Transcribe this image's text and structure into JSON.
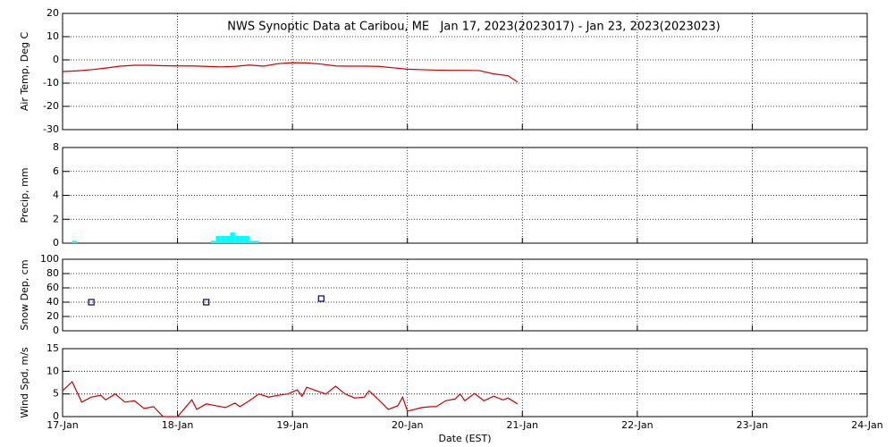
{
  "chart_data": [
    {
      "type": "line",
      "title": "NWS Synoptic Data at Caribou, ME   Jan 17, 2023(2023017) - Jan 23, 2023(2023023)",
      "ylabel": "Air Temp, Deg C",
      "color": "#cc0000",
      "x": [
        0,
        3,
        6,
        9,
        12,
        15,
        18,
        21,
        24,
        27,
        30,
        33,
        36,
        39,
        42,
        45,
        48,
        51,
        54,
        57,
        60,
        63,
        66,
        69,
        72,
        75,
        78,
        81,
        84,
        87,
        90,
        93,
        95
      ],
      "values": [
        -5,
        -4.7,
        -4.2,
        -3.5,
        -2.7,
        -2.3,
        -2.3,
        -2.5,
        -2.6,
        -2.6,
        -2.8,
        -3,
        -2.8,
        -2.2,
        -2.7,
        -1.6,
        -1.2,
        -1.3,
        -1.8,
        -2.6,
        -2.7,
        -2.7,
        -2.8,
        -3.4,
        -4,
        -4.2,
        -4.4,
        -4.5,
        -4.5,
        -4.6,
        -6,
        -6.8,
        -9.5
      ],
      "xlim": [
        0,
        168
      ],
      "xticks": [
        0,
        24,
        48,
        72,
        96,
        120,
        144,
        168
      ],
      "ylim": [
        -30,
        20
      ],
      "yticks": [
        -30,
        -20,
        -10,
        0,
        10,
        20
      ],
      "grid": true
    },
    {
      "type": "bar",
      "ylabel": "Precip, mm",
      "color": "#00ffff",
      "x": [
        2,
        31,
        32,
        33,
        34,
        35,
        36,
        37,
        38,
        39,
        40
      ],
      "values": [
        0.2,
        0.2,
        0.6,
        0.6,
        0.6,
        0.9,
        0.6,
        0.6,
        0.6,
        0.2,
        0.2
      ],
      "xlim": [
        0,
        168
      ],
      "xticks": [
        0,
        24,
        48,
        72,
        96,
        120,
        144,
        168
      ],
      "ylim": [
        0,
        8
      ],
      "yticks": [
        0,
        2,
        4,
        6,
        8
      ],
      "grid": true
    },
    {
      "type": "scatter",
      "ylabel": "Snow Dep, cm",
      "color": "#000080",
      "x": [
        6,
        30,
        54
      ],
      "values": [
        40,
        40,
        45
      ],
      "xlim": [
        0,
        168
      ],
      "xticks": [
        0,
        24,
        48,
        72,
        96,
        120,
        144,
        168
      ],
      "ylim": [
        0,
        100
      ],
      "yticks": [
        0,
        20,
        40,
        60,
        80,
        100
      ],
      "grid": true
    },
    {
      "type": "line",
      "ylabel": "Wind Spd, m/s",
      "xlabel": "Date (EST)",
      "color": "#cc0000",
      "x": [
        0,
        2,
        4,
        6,
        8,
        9,
        11,
        13,
        15,
        17,
        19,
        21,
        22,
        24,
        25,
        27,
        28,
        30,
        32,
        34,
        36,
        37,
        39,
        41,
        43,
        45,
        47,
        49,
        50,
        51,
        53,
        55,
        57,
        59,
        61,
        63,
        64,
        66,
        68,
        70,
        71,
        72,
        75,
        77,
        78,
        80,
        82,
        83,
        84,
        86,
        88,
        90,
        92,
        93,
        95
      ],
      "values": [
        5.7,
        7.7,
        3.2,
        4.3,
        4.7,
        3.7,
        5,
        3.2,
        3.5,
        1.8,
        2.2,
        0,
        0,
        0,
        1.2,
        3.7,
        1.6,
        2.8,
        2.4,
        2,
        3,
        2.2,
        3.5,
        5,
        4.3,
        4.7,
        5,
        5.9,
        4.5,
        6.5,
        5.7,
        5,
        6.7,
        5,
        4.1,
        4.3,
        5.7,
        3.7,
        1.6,
        2.4,
        4.3,
        1.2,
        2,
        2.2,
        2.2,
        3.5,
        3.9,
        5,
        3.5,
        5.1,
        3.5,
        4.5,
        3.7,
        4.1,
        2.8
      ],
      "xlim": [
        0,
        168
      ],
      "xticks": [
        {
          "value": 0,
          "label": "17-Jan"
        },
        {
          "value": 24,
          "label": "18-Jan"
        },
        {
          "value": 48,
          "label": "19-Jan"
        },
        {
          "value": 72,
          "label": "20-Jan"
        },
        {
          "value": 96,
          "label": "21-Jan"
        },
        {
          "value": 120,
          "label": "22-Jan"
        },
        {
          "value": 144,
          "label": "23-Jan"
        },
        {
          "value": 168,
          "label": "24-Jan"
        }
      ],
      "ylim": [
        0,
        15
      ],
      "yticks": [
        0,
        5,
        10,
        15
      ],
      "grid": true
    }
  ]
}
